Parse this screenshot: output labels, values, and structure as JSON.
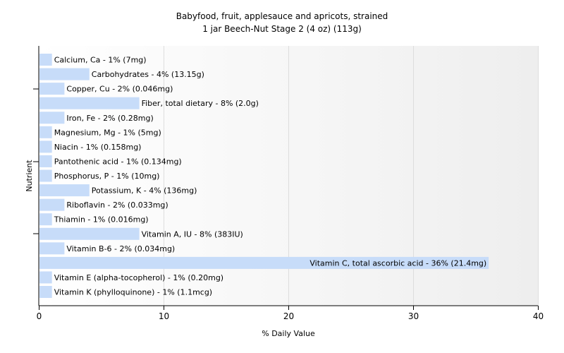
{
  "chart_data": {
    "type": "bar",
    "orientation": "horizontal",
    "title": "Babyfood, fruit, applesauce and apricots, strained",
    "subtitle": "1 jar Beech-Nut Stage 2 (4 oz) (113g)",
    "xlabel": "% Daily Value",
    "ylabel": "Nutrient",
    "xlim": [
      0,
      40
    ],
    "xticks": [
      0,
      10,
      20,
      30,
      40
    ],
    "grid": true,
    "bar_color": "#c7dcf9",
    "bars": [
      {
        "label": "Calcium, Ca - 1% (7mg)",
        "value": 1
      },
      {
        "label": "Carbohydrates - 4% (13.15g)",
        "value": 4
      },
      {
        "label": "Copper, Cu - 2% (0.046mg)",
        "value": 2
      },
      {
        "label": "Fiber, total dietary - 8% (2.0g)",
        "value": 8
      },
      {
        "label": "Iron, Fe - 2% (0.28mg)",
        "value": 2
      },
      {
        "label": "Magnesium, Mg - 1% (5mg)",
        "value": 1
      },
      {
        "label": "Niacin - 1% (0.158mg)",
        "value": 1
      },
      {
        "label": "Pantothenic acid - 1% (0.134mg)",
        "value": 1
      },
      {
        "label": "Phosphorus, P - 1% (10mg)",
        "value": 1
      },
      {
        "label": "Potassium, K - 4% (136mg)",
        "value": 4
      },
      {
        "label": "Riboflavin - 2% (0.033mg)",
        "value": 2
      },
      {
        "label": "Thiamin - 1% (0.016mg)",
        "value": 1
      },
      {
        "label": "Vitamin A, IU - 8% (383IU)",
        "value": 8
      },
      {
        "label": "Vitamin B-6 - 2% (0.034mg)",
        "value": 2
      },
      {
        "label": "Vitamin C, total ascorbic acid - 36% (21.4mg)",
        "value": 36
      },
      {
        "label": "Vitamin E (alpha-tocopherol) - 1% (0.20mg)",
        "value": 1
      },
      {
        "label": "Vitamin K (phylloquinone) - 1% (1.1mcg)",
        "value": 1
      }
    ]
  }
}
